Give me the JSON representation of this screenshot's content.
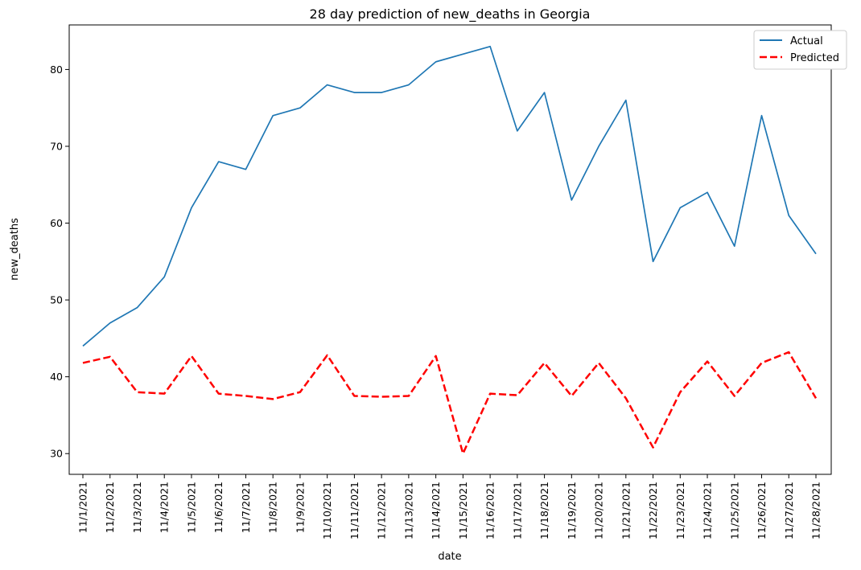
{
  "chart_data": {
    "type": "line",
    "title": "28 day prediction of new_deaths in Georgia",
    "xlabel": "date",
    "ylabel": "new_deaths",
    "ylim": [
      27.3,
      85.8
    ],
    "yticks": [
      30,
      40,
      50,
      60,
      70,
      80
    ],
    "grid": false,
    "legend_position": "top-right",
    "x": [
      "11/1/2021",
      "11/2/2021",
      "11/3/2021",
      "11/4/2021",
      "11/5/2021",
      "11/6/2021",
      "11/7/2021",
      "11/8/2021",
      "11/9/2021",
      "11/10/2021",
      "11/11/2021",
      "11/12/2021",
      "11/13/2021",
      "11/14/2021",
      "11/15/2021",
      "11/16/2021",
      "11/17/2021",
      "11/18/2021",
      "11/19/2021",
      "11/20/2021",
      "11/21/2021",
      "11/22/2021",
      "11/23/2021",
      "11/24/2021",
      "11/25/2021",
      "11/26/2021",
      "11/27/2021",
      "11/28/2021"
    ],
    "series": [
      {
        "name": "Actual",
        "color": "#1f77b4",
        "style": "solid",
        "values": [
          44,
          47,
          49,
          53,
          62,
          68,
          67,
          74,
          75,
          78,
          77,
          77,
          78,
          81,
          82,
          83,
          72,
          77,
          63,
          70,
          76,
          55,
          62,
          64,
          57,
          74,
          61,
          56
        ]
      },
      {
        "name": "Predicted",
        "color": "#ff0000",
        "style": "dashed",
        "values": [
          41.8,
          42.6,
          38.0,
          37.8,
          42.7,
          37.8,
          37.5,
          37.1,
          38.0,
          42.8,
          37.5,
          37.4,
          37.5,
          42.7,
          30.0,
          37.8,
          37.6,
          41.8,
          37.5,
          41.8,
          37.2,
          30.8,
          38.0,
          42.0,
          37.5,
          41.8,
          43.2,
          37.2
        ]
      }
    ]
  }
}
